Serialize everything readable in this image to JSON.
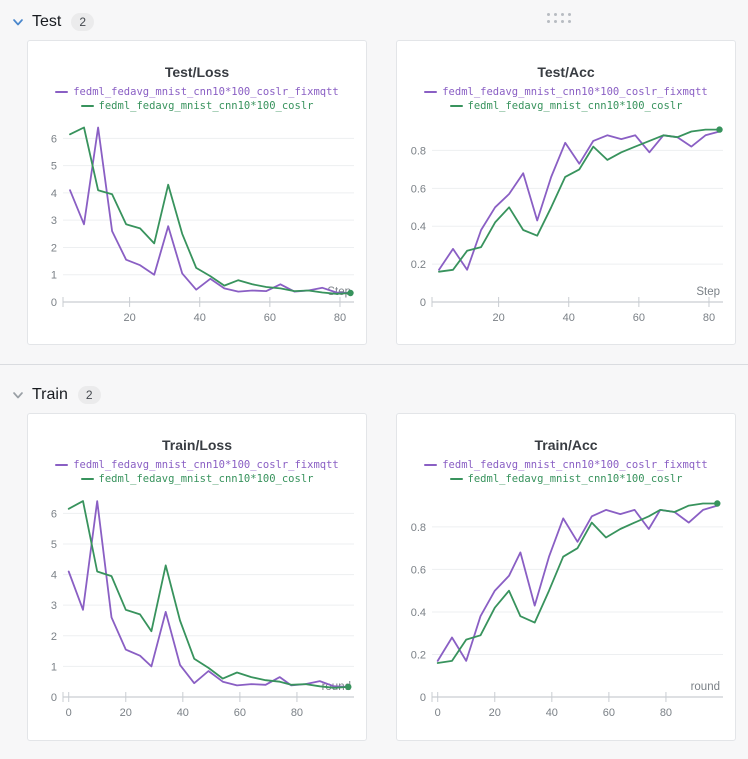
{
  "colors": {
    "series_purple": "#8a5fc4",
    "series_green": "#38935d",
    "grid": "#edeff1",
    "axis": "#c9cdd2",
    "tick_text": "#7b8187",
    "chevron_test": "#4a87cc",
    "chevron_train": "#9aa0a6"
  },
  "sections": [
    {
      "label": "Test",
      "badge": "2"
    },
    {
      "label": "Train",
      "badge": "2"
    }
  ],
  "chart_data": [
    {
      "type": "line",
      "title": "Test/Loss",
      "xlabel": "Step",
      "x": [
        3,
        7,
        11,
        15,
        19,
        23,
        27,
        31,
        35,
        39,
        43,
        47,
        51,
        55,
        59,
        63,
        67,
        71,
        75,
        79,
        83
      ],
      "series": [
        {
          "name": "fedml_fedavg_mnist_cnn10*100_coslr_fixmqtt",
          "color": "#8a5fc4",
          "values": [
            4.1,
            2.85,
            6.4,
            2.6,
            1.55,
            1.35,
            1.0,
            2.78,
            1.05,
            0.45,
            0.85,
            0.5,
            0.38,
            0.42,
            0.4,
            0.65,
            0.38,
            0.42,
            0.52,
            0.35,
            0.33
          ]
        },
        {
          "name": "fedml_fedavg_mnist_cnn10*100_coslr",
          "color": "#38935d",
          "end_marker": true,
          "values": [
            6.15,
            6.4,
            4.1,
            3.95,
            2.85,
            2.7,
            2.15,
            4.3,
            2.5,
            1.25,
            0.95,
            0.6,
            0.8,
            0.65,
            0.55,
            0.5,
            0.4,
            0.42,
            0.35,
            0.3,
            0.33
          ]
        }
      ],
      "xlim": [
        1,
        84
      ],
      "ylim": [
        0,
        6.6
      ],
      "xticks": [
        20,
        40,
        60,
        80
      ],
      "yticks": [
        0,
        1,
        2,
        3,
        4,
        5,
        6
      ],
      "grid": "horizontal",
      "legend_position": "top"
    },
    {
      "type": "line",
      "title": "Test/Acc",
      "xlabel": "Step",
      "x": [
        3,
        7,
        11,
        15,
        19,
        23,
        27,
        31,
        35,
        39,
        43,
        47,
        51,
        55,
        59,
        63,
        67,
        71,
        75,
        79,
        83
      ],
      "series": [
        {
          "name": "fedml_fedavg_mnist_cnn10*100_coslr_fixmqtt",
          "color": "#8a5fc4",
          "values": [
            0.17,
            0.28,
            0.17,
            0.38,
            0.5,
            0.57,
            0.68,
            0.43,
            0.66,
            0.84,
            0.73,
            0.85,
            0.88,
            0.86,
            0.88,
            0.79,
            0.88,
            0.87,
            0.82,
            0.88,
            0.9
          ]
        },
        {
          "name": "fedml_fedavg_mnist_cnn10*100_coslr",
          "color": "#38935d",
          "end_marker": true,
          "values": [
            0.16,
            0.17,
            0.27,
            0.29,
            0.42,
            0.5,
            0.38,
            0.35,
            0.5,
            0.66,
            0.7,
            0.82,
            0.75,
            0.79,
            0.82,
            0.85,
            0.88,
            0.87,
            0.9,
            0.91,
            0.91
          ]
        }
      ],
      "xlim": [
        1,
        84
      ],
      "ylim": [
        0,
        0.95
      ],
      "xticks": [
        20,
        40,
        60,
        80
      ],
      "yticks": [
        0,
        0.2,
        0.4,
        0.6,
        0.8
      ],
      "grid": "horizontal",
      "legend_position": "top"
    },
    {
      "type": "line",
      "title": "Train/Loss",
      "xlabel": "round",
      "x": [
        0,
        5,
        10,
        15,
        20,
        25,
        29,
        34,
        39,
        44,
        49,
        54,
        59,
        64,
        69,
        74,
        78,
        83,
        88,
        93,
        98
      ],
      "series": [
        {
          "name": "fedml_fedavg_mnist_cnn10*100_coslr_fixmqtt",
          "color": "#8a5fc4",
          "values": [
            4.1,
            2.85,
            6.4,
            2.6,
            1.55,
            1.35,
            1.0,
            2.78,
            1.05,
            0.45,
            0.85,
            0.5,
            0.38,
            0.42,
            0.4,
            0.65,
            0.38,
            0.42,
            0.52,
            0.35,
            0.33
          ]
        },
        {
          "name": "fedml_fedavg_mnist_cnn10*100_coslr",
          "color": "#38935d",
          "end_marker": true,
          "values": [
            6.15,
            6.4,
            4.1,
            3.95,
            2.85,
            2.7,
            2.15,
            4.3,
            2.5,
            1.25,
            0.95,
            0.6,
            0.8,
            0.65,
            0.55,
            0.5,
            0.4,
            0.42,
            0.35,
            0.3,
            0.33
          ]
        }
      ],
      "xlim": [
        -2,
        100
      ],
      "ylim": [
        0,
        6.6
      ],
      "xticks": [
        0,
        20,
        40,
        60,
        80
      ],
      "yticks": [
        0,
        1,
        2,
        3,
        4,
        5,
        6
      ],
      "grid": "horizontal",
      "legend_position": "top"
    },
    {
      "type": "line",
      "title": "Train/Acc",
      "xlabel": "round",
      "x": [
        0,
        5,
        10,
        15,
        20,
        25,
        29,
        34,
        39,
        44,
        49,
        54,
        59,
        64,
        69,
        74,
        78,
        83,
        88,
        93,
        98
      ],
      "series": [
        {
          "name": "fedml_fedavg_mnist_cnn10*100_coslr_fixmqtt",
          "color": "#8a5fc4",
          "values": [
            0.17,
            0.28,
            0.17,
            0.38,
            0.5,
            0.57,
            0.68,
            0.43,
            0.66,
            0.84,
            0.73,
            0.85,
            0.88,
            0.86,
            0.88,
            0.79,
            0.88,
            0.87,
            0.82,
            0.88,
            0.9
          ]
        },
        {
          "name": "fedml_fedavg_mnist_cnn10*100_coslr",
          "color": "#38935d",
          "end_marker": true,
          "values": [
            0.16,
            0.17,
            0.27,
            0.29,
            0.42,
            0.5,
            0.38,
            0.35,
            0.5,
            0.66,
            0.7,
            0.82,
            0.75,
            0.79,
            0.82,
            0.85,
            0.88,
            0.87,
            0.9,
            0.91,
            0.91
          ]
        }
      ],
      "xlim": [
        -2,
        100
      ],
      "ylim": [
        0,
        0.95
      ],
      "xticks": [
        0,
        20,
        40,
        60,
        80
      ],
      "yticks": [
        0,
        0.2,
        0.4,
        0.6,
        0.8
      ],
      "grid": "horizontal",
      "legend_position": "top"
    }
  ]
}
